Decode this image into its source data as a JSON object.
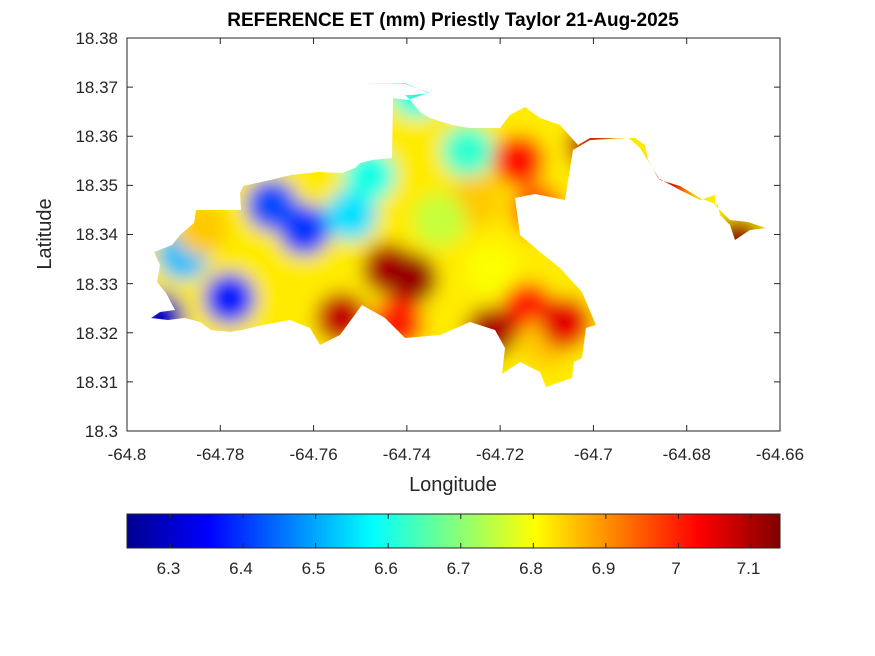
{
  "title": "REFERENCE ET (mm) Priestly Taylor 21-Aug-2025",
  "xlabel": "Longitude",
  "ylabel": "Latitude",
  "x_ticks": [
    "-64.8",
    "-64.78",
    "-64.76",
    "-64.74",
    "-64.72",
    "-64.7",
    "-64.68",
    "-64.66"
  ],
  "y_ticks": [
    "18.3",
    "18.31",
    "18.32",
    "18.33",
    "18.34",
    "18.35",
    "18.36",
    "18.37",
    "18.38"
  ],
  "colorbar": {
    "colormap": "jet",
    "range": [
      6.24,
      7.14
    ],
    "ticks": [
      "6.3",
      "6.4",
      "6.5",
      "6.6",
      "6.7",
      "6.8",
      "6.9",
      "7",
      "7.1"
    ]
  },
  "chart_data": {
    "type": "heatmap",
    "title": "REFERENCE ET (mm) Priestly Taylor 21-Aug-2025",
    "xlabel": "Longitude",
    "ylabel": "Latitude",
    "xlim": [
      -64.8,
      -64.66
    ],
    "ylim": [
      18.3,
      18.38
    ],
    "clim": [
      6.24,
      7.14
    ],
    "colormap": "jet",
    "grid": false,
    "colorbar_position": "bottom",
    "field_samples": [
      {
        "lon": -64.778,
        "lat": 18.327,
        "value": 6.38
      },
      {
        "lon": -64.793,
        "lat": 18.323,
        "value": 6.3
      },
      {
        "lon": -64.762,
        "lat": 18.341,
        "value": 6.4
      },
      {
        "lon": -64.769,
        "lat": 18.346,
        "value": 6.42
      },
      {
        "lon": -64.788,
        "lat": 18.336,
        "value": 6.52
      },
      {
        "lon": -64.752,
        "lat": 18.344,
        "value": 6.55
      },
      {
        "lon": -64.748,
        "lat": 18.352,
        "value": 6.6
      },
      {
        "lon": -64.738,
        "lat": 18.369,
        "value": 6.6
      },
      {
        "lon": -64.727,
        "lat": 18.357,
        "value": 6.62
      },
      {
        "lon": -64.784,
        "lat": 18.341,
        "value": 6.85
      },
      {
        "lon": -64.744,
        "lat": 18.333,
        "value": 7.1
      },
      {
        "lon": -64.739,
        "lat": 18.331,
        "value": 7.12
      },
      {
        "lon": -64.754,
        "lat": 18.323,
        "value": 7.08
      },
      {
        "lon": -64.742,
        "lat": 18.322,
        "value": 7.0
      },
      {
        "lon": -64.725,
        "lat": 18.347,
        "value": 6.85
      },
      {
        "lon": -64.733,
        "lat": 18.343,
        "value": 6.75
      },
      {
        "lon": -64.716,
        "lat": 18.355,
        "value": 7.02
      },
      {
        "lon": -64.712,
        "lat": 18.345,
        "value": 6.95
      },
      {
        "lon": -64.722,
        "lat": 18.333,
        "value": 6.8
      },
      {
        "lon": -64.714,
        "lat": 18.325,
        "value": 7.0
      },
      {
        "lon": -64.71,
        "lat": 18.318,
        "value": 6.85
      },
      {
        "lon": -64.722,
        "lat": 18.32,
        "value": 7.1
      },
      {
        "lon": -64.706,
        "lat": 18.322,
        "value": 7.05
      },
      {
        "lon": -64.7,
        "lat": 18.358,
        "value": 7.08
      },
      {
        "lon": -64.684,
        "lat": 18.35,
        "value": 7.05
      },
      {
        "lon": -64.669,
        "lat": 18.338,
        "value": 7.12
      }
    ]
  }
}
